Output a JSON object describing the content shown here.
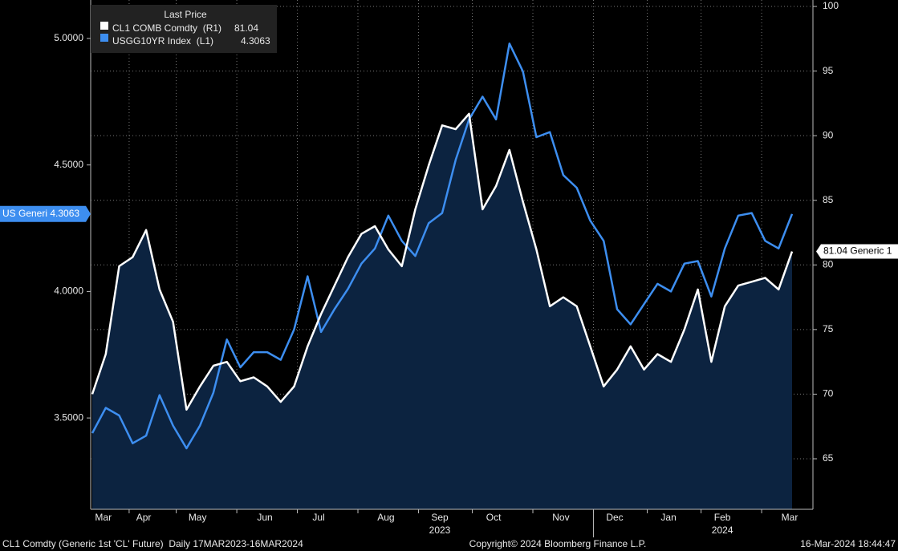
{
  "chart_data": {
    "type": "line",
    "legend_title": "Last Price",
    "categories": [
      null,
      "Mar",
      null,
      null,
      "Apr",
      null,
      null,
      null,
      "May",
      null,
      null,
      null,
      null,
      "Jun",
      null,
      null,
      null,
      "Jul",
      null,
      null,
      null,
      null,
      "Aug",
      null,
      null,
      null,
      "Sep",
      null,
      null,
      null,
      "Oct",
      null,
      null,
      null,
      null,
      "Nov",
      null,
      null,
      null,
      "Dec",
      null,
      null,
      null,
      "Jan",
      null,
      null,
      null,
      "Feb",
      null,
      null,
      null,
      null,
      "Mar"
    ],
    "year_labels": [
      "2023",
      "2024"
    ],
    "series": [
      {
        "name": "CL1 COMB Comdty  (R1)",
        "color": "#ffffff",
        "area_color": "#0c2340",
        "axis": "y2",
        "callout": "Generic 1",
        "values": [
          70.0,
          73.1,
          79.9,
          80.6,
          82.7,
          78.1,
          75.6,
          68.8,
          70.6,
          72.2,
          72.5,
          71.0,
          71.3,
          70.6,
          69.4,
          70.6,
          73.7,
          76.2,
          78.4,
          80.6,
          82.4,
          83.0,
          81.2,
          79.9,
          84.3,
          87.7,
          90.8,
          90.5,
          91.7,
          84.3,
          86.1,
          88.9,
          84.9,
          81.2,
          76.8,
          77.5,
          76.8,
          73.7,
          70.6,
          71.9,
          73.7,
          71.9,
          73.1,
          72.5,
          75.0,
          78.1,
          72.5,
          76.8,
          78.4,
          78.7,
          79.0,
          78.1,
          81.04
        ]
      },
      {
        "name": "USGG10YR Index  (L1)",
        "color": "#3d8ef0",
        "axis": "y",
        "callout": "US Generi",
        "values": [
          3.44,
          3.54,
          3.51,
          3.4,
          3.43,
          3.59,
          3.47,
          3.38,
          3.47,
          3.6,
          3.81,
          3.7,
          3.76,
          3.76,
          3.73,
          3.85,
          4.06,
          3.84,
          3.93,
          4.01,
          4.11,
          4.17,
          4.3,
          4.2,
          4.14,
          4.27,
          4.31,
          4.52,
          4.68,
          4.77,
          4.68,
          4.98,
          4.87,
          4.61,
          4.63,
          4.46,
          4.41,
          4.28,
          4.2,
          3.93,
          3.87,
          3.95,
          4.03,
          4.0,
          4.11,
          4.12,
          3.98,
          4.17,
          4.3,
          4.31,
          4.2,
          4.17,
          4.3063
        ]
      }
    ],
    "ylim": [
      3.139,
      5.152
    ],
    "yticks": [
      {
        "value": 3.5,
        "label": "3.5000"
      },
      {
        "value": 4,
        "label": "4.0000"
      },
      {
        "value": 4.5,
        "label": "4.5000"
      },
      {
        "value": 5,
        "label": "5.0000"
      }
    ],
    "y2lim": [
      61.09,
      100.5
    ],
    "y2ticks": [
      65,
      70,
      75,
      80,
      85,
      90,
      95,
      100
    ],
    "grid": true,
    "footer_left": "CL1 Comdty (Generic 1st 'CL' Future)  Daily 17MAR2023-16MAR2024",
    "footer_center": "Copyright© 2024 Bloomberg Finance L.P.",
    "footer_right": "16-Mar-2024 18:44:47"
  }
}
